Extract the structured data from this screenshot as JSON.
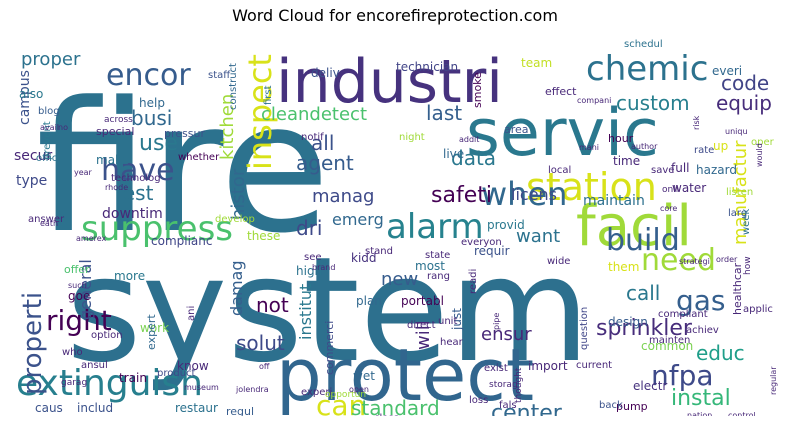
{
  "title": "Word Cloud for encorefireprotection.com",
  "palette": [
    "#440154",
    "#46327e",
    "#365c8d",
    "#277f8e",
    "#1fa187",
    "#4ac16d",
    "#a0da39",
    "#d8e219"
  ],
  "words": [
    {
      "text": "fire",
      "size": 180,
      "color": "#2c728e"
    },
    {
      "text": "system",
      "size": 145,
      "color": "#2d708e"
    },
    {
      "text": "protect",
      "size": 72,
      "color": "#31668e"
    },
    {
      "text": "servic",
      "size": 65,
      "color": "#2a788e"
    },
    {
      "text": "industri",
      "size": 60,
      "color": "#46327e"
    },
    {
      "text": "facil",
      "size": 56,
      "color": "#a0da39"
    },
    {
      "text": "station",
      "size": 38,
      "color": "#d8e219"
    },
    {
      "text": "extinguish",
      "size": 36,
      "color": "#277f8e"
    },
    {
      "text": "suppress",
      "size": 34,
      "color": "#4ac16d"
    },
    {
      "text": "alarm",
      "size": 34,
      "color": "#26828e"
    },
    {
      "text": "chemic",
      "size": 34,
      "color": "#2c728e"
    },
    {
      "text": "when",
      "size": 32,
      "color": "#31688e"
    },
    {
      "text": "inspect",
      "size": 32,
      "color": "#d8e219"
    },
    {
      "text": "encor",
      "size": 30,
      "color": "#365c8d"
    },
    {
      "text": "have",
      "size": 30,
      "color": "#3b528b"
    },
    {
      "text": "build",
      "size": 30,
      "color": "#355f8d"
    },
    {
      "text": "need",
      "size": 30,
      "color": "#a0da39"
    },
    {
      "text": "right",
      "size": 28,
      "color": "#440154"
    },
    {
      "text": "can",
      "size": 28,
      "color": "#d8e219"
    },
    {
      "text": "nfpa",
      "size": 28,
      "color": "#3e4a89"
    },
    {
      "text": "gas",
      "size": 28,
      "color": "#355f8d"
    },
    {
      "text": "properti",
      "size": 26,
      "color": "#3b528b"
    },
    {
      "text": "code",
      "size": 20,
      "color": "#414487"
    },
    {
      "text": "custom",
      "size": 20,
      "color": "#277f8e"
    },
    {
      "text": "equip",
      "size": 20,
      "color": "#472d7b"
    },
    {
      "text": "proper",
      "size": 18,
      "color": "#2c728e"
    },
    {
      "text": "busi",
      "size": 20,
      "color": "#31688e"
    },
    {
      "text": "safeti",
      "size": 22,
      "color": "#440154"
    },
    {
      "text": "agent",
      "size": 20,
      "color": "#365c8d"
    },
    {
      "text": "data",
      "size": 20,
      "color": "#2a788e"
    },
    {
      "text": "cleandetect",
      "size": 18,
      "color": "#4ac16d"
    },
    {
      "text": "last",
      "size": 20,
      "color": "#355f8d"
    },
    {
      "text": "all",
      "size": 20,
      "color": "#3b528b"
    },
    {
      "text": "use",
      "size": 22,
      "color": "#2a788e"
    },
    {
      "text": "manag",
      "size": 18,
      "color": "#3e4a89"
    },
    {
      "text": "histor",
      "size": 18,
      "color": "#31688e"
    },
    {
      "text": "kitchen",
      "size": 18,
      "color": "#a0da39"
    },
    {
      "text": "test",
      "size": 20,
      "color": "#2c728e"
    },
    {
      "text": "downtim",
      "size": 14,
      "color": "#482878"
    },
    {
      "text": "dri",
      "size": 20,
      "color": "#3e4a89"
    },
    {
      "text": "emerg",
      "size": 16,
      "color": "#31688e"
    },
    {
      "text": "want",
      "size": 18,
      "color": "#2c728e"
    },
    {
      "text": "licens",
      "size": 16,
      "color": "#3e4a89"
    },
    {
      "text": "maintain",
      "size": 14,
      "color": "#2d708e"
    },
    {
      "text": "manufactur",
      "size": 18,
      "color": "#d8e219"
    },
    {
      "text": "instal",
      "size": 22,
      "color": "#35b779"
    },
    {
      "text": "sprinkler",
      "size": 22,
      "color": "#472d7b"
    },
    {
      "text": "call",
      "size": 20,
      "color": "#2a788e"
    },
    {
      "text": "educ",
      "size": 20,
      "color": "#1f9e89"
    },
    {
      "text": "center",
      "size": 22,
      "color": "#31688e"
    },
    {
      "text": "standard",
      "size": 20,
      "color": "#4ac16d"
    },
    {
      "text": "ensur",
      "size": 18,
      "color": "#482878"
    },
    {
      "text": "solut",
      "size": 20,
      "color": "#3e4a89"
    },
    {
      "text": "not",
      "size": 20,
      "color": "#440154"
    },
    {
      "text": "damag",
      "size": 16,
      "color": "#355f8d"
    },
    {
      "text": "institut",
      "size": 16,
      "color": "#2a788e"
    },
    {
      "text": "will",
      "size": 18,
      "color": "#482878"
    },
    {
      "text": "new",
      "size": 18,
      "color": "#365c8d"
    },
    {
      "text": "kidd",
      "size": 12,
      "color": "#46327e"
    },
    {
      "text": "general",
      "size": 16,
      "color": "#3b528b"
    },
    {
      "text": "campus",
      "size": 14,
      "color": "#3b528b"
    },
    {
      "text": "secur",
      "size": 14,
      "color": "#482878"
    },
    {
      "text": "type",
      "size": 14,
      "color": "#3e4a89"
    },
    {
      "text": "complianc",
      "size": 12,
      "color": "#404688"
    },
    {
      "text": "these",
      "size": 12,
      "color": "#a0da39"
    },
    {
      "text": "more",
      "size": 12,
      "color": "#2a788e"
    },
    {
      "text": "goe",
      "size": 12,
      "color": "#440154"
    },
    {
      "text": "work",
      "size": 12,
      "color": "#7ad151"
    },
    {
      "text": "know",
      "size": 12,
      "color": "#482878"
    },
    {
      "text": "expert",
      "size": 11,
      "color": "#31688e"
    },
    {
      "text": "high",
      "size": 12,
      "color": "#2c728e"
    },
    {
      "text": "plan",
      "size": 12,
      "color": "#31688e"
    },
    {
      "text": "portabl",
      "size": 12,
      "color": "#440154"
    },
    {
      "text": "wet",
      "size": 12,
      "color": "#31688e"
    },
    {
      "text": "commerci",
      "size": 11,
      "color": "#3e4a89"
    },
    {
      "text": "just",
      "size": 12,
      "color": "#365c8d"
    },
    {
      "text": "question",
      "size": 10,
      "color": "#404688"
    },
    {
      "text": "import",
      "size": 12,
      "color": "#482878"
    },
    {
      "text": "design",
      "size": 12,
      "color": "#365c8d"
    },
    {
      "text": "common",
      "size": 12,
      "color": "#7ad151"
    },
    {
      "text": "electr",
      "size": 12,
      "color": "#46327e"
    },
    {
      "text": "pump",
      "size": 11,
      "color": "#440154"
    },
    {
      "text": "train",
      "size": 12,
      "color": "#440154"
    },
    {
      "text": "product",
      "size": 10,
      "color": "#3e4a89"
    },
    {
      "text": "caus",
      "size": 12,
      "color": "#3b528b"
    },
    {
      "text": "includ",
      "size": 12,
      "color": "#3b528b"
    },
    {
      "text": "restaur",
      "size": 12,
      "color": "#2c728e"
    },
    {
      "text": "regul",
      "size": 11,
      "color": "#365c8d"
    },
    {
      "text": "water",
      "size": 12,
      "color": "#482878"
    },
    {
      "text": "hazard",
      "size": 12,
      "color": "#31688e"
    },
    {
      "text": "full",
      "size": 12,
      "color": "#482878"
    },
    {
      "text": "time",
      "size": 12,
      "color": "#482878"
    },
    {
      "text": "rate",
      "size": 10,
      "color": "#3e4a89"
    },
    {
      "text": "hour",
      "size": 11,
      "color": "#440154"
    },
    {
      "text": "up",
      "size": 12,
      "color": "#d8e219"
    },
    {
      "text": "them",
      "size": 12,
      "color": "#d8e219"
    },
    {
      "text": "healthcar",
      "size": 11,
      "color": "#482878"
    },
    {
      "text": "provid",
      "size": 12,
      "color": "#2a788e"
    },
    {
      "text": "requir",
      "size": 12,
      "color": "#3b528b"
    },
    {
      "text": "most",
      "size": 12,
      "color": "#2c728e"
    },
    {
      "text": "technician",
      "size": 12,
      "color": "#414487"
    },
    {
      "text": "team",
      "size": 12,
      "color": "#c2df23"
    },
    {
      "text": "deliv",
      "size": 12,
      "color": "#3b528b"
    },
    {
      "text": "help",
      "size": 12,
      "color": "#31688e"
    },
    {
      "text": "also",
      "size": 12,
      "color": "#2a788e"
    },
    {
      "text": "special",
      "size": 11,
      "color": "#482878"
    },
    {
      "text": "pressur",
      "size": 11,
      "color": "#3b528b"
    },
    {
      "text": "offer",
      "size": 11,
      "color": "#4ac16d"
    },
    {
      "text": "smoke",
      "size": 11,
      "color": "#440154"
    },
    {
      "text": "effect",
      "size": 11,
      "color": "#482878"
    },
    {
      "text": "everi",
      "size": 12,
      "color": "#31688e"
    },
    {
      "text": "schedul",
      "size": 10,
      "color": "#2c728e"
    },
    {
      "text": "prevent",
      "size": 10,
      "color": "#2a788e"
    },
    {
      "text": "make",
      "size": 12,
      "color": "#2c728e"
    },
    {
      "text": "technolog",
      "size": 10,
      "color": "#482878"
    },
    {
      "text": "whether",
      "size": 10,
      "color": "#440154"
    },
    {
      "text": "offic",
      "size": 10,
      "color": "#2c728e"
    },
    {
      "text": "staff",
      "size": 10,
      "color": "#3b528b"
    },
    {
      "text": "blog",
      "size": 10,
      "color": "#365c8d"
    },
    {
      "text": "construct",
      "size": 10,
      "color": "#31688e"
    },
    {
      "text": "first",
      "size": 10,
      "color": "#2c728e"
    },
    {
      "text": "notif",
      "size": 10,
      "color": "#482878"
    },
    {
      "text": "night",
      "size": 10,
      "color": "#a0da39"
    },
    {
      "text": "live",
      "size": 12,
      "color": "#31688e"
    },
    {
      "text": "area",
      "size": 11,
      "color": "#3b528b"
    },
    {
      "text": "local",
      "size": 10,
      "color": "#482878"
    },
    {
      "text": "save",
      "size": 10,
      "color": "#482878"
    },
    {
      "text": "listen",
      "size": 10,
      "color": "#a0da39"
    },
    {
      "text": "oper",
      "size": 10,
      "color": "#a0da39"
    },
    {
      "text": "larg",
      "size": 10,
      "color": "#3b528b"
    },
    {
      "text": "week",
      "size": 10,
      "color": "#2c728e"
    },
    {
      "text": "applic",
      "size": 10,
      "color": "#482878"
    },
    {
      "text": "achiev",
      "size": 10,
      "color": "#482878"
    },
    {
      "text": "compliant",
      "size": 10,
      "color": "#482878"
    },
    {
      "text": "mainten",
      "size": 10,
      "color": "#482878"
    },
    {
      "text": "current",
      "size": 10,
      "color": "#482878"
    },
    {
      "text": "exist",
      "size": 10,
      "color": "#482878"
    },
    {
      "text": "loss",
      "size": 10,
      "color": "#482878"
    },
    {
      "text": "back",
      "size": 10,
      "color": "#3b528b"
    },
    {
      "text": "cost",
      "size": 10,
      "color": "#482878"
    },
    {
      "text": "fals",
      "size": 10,
      "color": "#482878"
    },
    {
      "text": "class",
      "size": 10,
      "color": "#482878"
    },
    {
      "text": "storag",
      "size": 9,
      "color": "#482878"
    },
    {
      "text": "thought",
      "size": 9,
      "color": "#482878"
    },
    {
      "text": "unit",
      "size": 10,
      "color": "#482878"
    },
    {
      "text": "hear",
      "size": 10,
      "color": "#482878"
    },
    {
      "text": "direct",
      "size": 10,
      "color": "#482878"
    },
    {
      "text": "wide",
      "size": 10,
      "color": "#482878"
    },
    {
      "text": "readi",
      "size": 10,
      "color": "#482878"
    },
    {
      "text": "rang",
      "size": 10,
      "color": "#482878"
    },
    {
      "text": "everyon",
      "size": 10,
      "color": "#482878"
    },
    {
      "text": "see",
      "size": 10,
      "color": "#482878"
    },
    {
      "text": "brand",
      "size": 8,
      "color": "#482878"
    },
    {
      "text": "ani",
      "size": 10,
      "color": "#482878"
    },
    {
      "text": "option",
      "size": 10,
      "color": "#482878"
    },
    {
      "text": "ansul",
      "size": 10,
      "color": "#482878"
    },
    {
      "text": "who",
      "size": 10,
      "color": "#482878"
    },
    {
      "text": "garag",
      "size": 9,
      "color": "#482878"
    },
    {
      "text": "experi",
      "size": 10,
      "color": "#482878"
    },
    {
      "text": "opportun",
      "size": 9,
      "color": "#a0da39"
    },
    {
      "text": "answer",
      "size": 10,
      "color": "#482878"
    },
    {
      "text": "state",
      "size": 10,
      "color": "#482878"
    },
    {
      "text": "develop",
      "size": 10,
      "color": "#a0da39"
    },
    {
      "text": "stand",
      "size": 10,
      "color": "#482878"
    },
    {
      "text": "across",
      "size": 9,
      "color": "#482878"
    },
    {
      "text": "addit",
      "size": 8,
      "color": "#482878"
    },
    {
      "text": "author",
      "size": 8,
      "color": "#482878"
    },
    {
      "text": "compani",
      "size": 8,
      "color": "#482878"
    },
    {
      "text": "mani",
      "size": 8,
      "color": "#482878"
    },
    {
      "text": "onli",
      "size": 9,
      "color": "#482878"
    },
    {
      "text": "core",
      "size": 8,
      "color": "#482878"
    },
    {
      "text": "strategi",
      "size": 8,
      "color": "#482878"
    },
    {
      "text": "order",
      "size": 8,
      "color": "#482878"
    },
    {
      "text": "how",
      "size": 9,
      "color": "#482878"
    },
    {
      "text": "would",
      "size": 8,
      "color": "#482878"
    },
    {
      "text": "uniqu",
      "size": 8,
      "color": "#482878"
    },
    {
      "text": "risk",
      "size": 8,
      "color": "#482878"
    },
    {
      "text": "march",
      "size": 8,
      "color": "#482878"
    },
    {
      "text": "nation",
      "size": 8,
      "color": "#482878"
    },
    {
      "text": "control",
      "size": 8,
      "color": "#482878"
    },
    {
      "text": "contain",
      "size": 8,
      "color": "#482878"
    },
    {
      "text": "regular",
      "size": 8,
      "color": "#482878"
    },
    {
      "text": "mass",
      "size": 8,
      "color": "#482878"
    },
    {
      "text": "pipe",
      "size": 8,
      "color": "#482878"
    },
    {
      "text": "open",
      "size": 8,
      "color": "#482878"
    },
    {
      "text": "jolendra",
      "size": 8,
      "color": "#482878"
    },
    {
      "text": "museum",
      "size": 8,
      "color": "#482878"
    },
    {
      "text": "off",
      "size": 8,
      "color": "#482878"
    },
    {
      "text": "amerex",
      "size": 8,
      "color": "#482878"
    },
    {
      "text": "eath",
      "size": 8,
      "color": "#482878"
    },
    {
      "text": "rhode",
      "size": 8,
      "color": "#482878"
    },
    {
      "text": "year",
      "size": 8,
      "color": "#482878"
    },
    {
      "text": "avail",
      "size": 8,
      "color": "#482878"
    },
    {
      "text": "no",
      "size": 8,
      "color": "#482878"
    },
    {
      "text": "such",
      "size": 8,
      "color": "#482878"
    }
  ]
}
